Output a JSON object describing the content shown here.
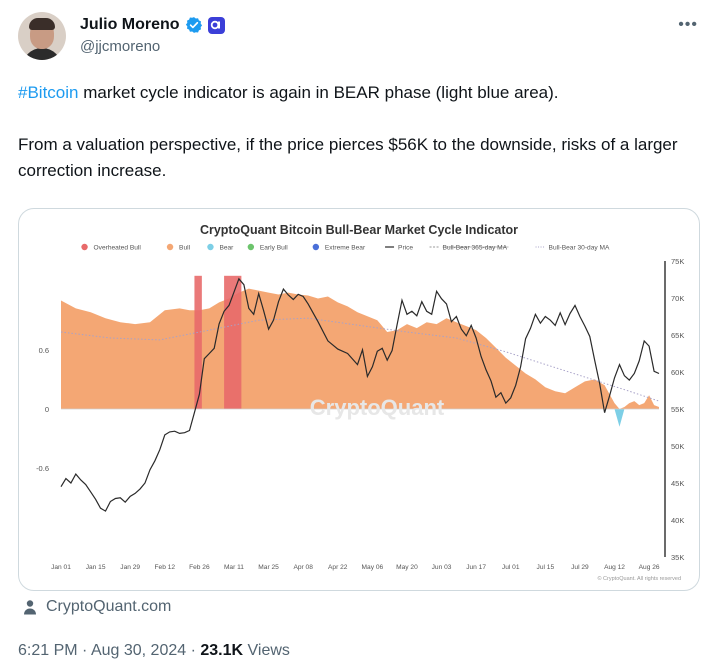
{
  "user": {
    "display_name": "Julio Moreno",
    "handle": "@jjcmoreno"
  },
  "tweet": {
    "hashtag": "#Bitcoin",
    "line1_rest": " market cycle indicator is again in BEAR phase (light blue area).",
    "line2": "From a valuation perspective, if the price pierces $56K to the downside, risks of a larger correction increase."
  },
  "card_source": "CryptoQuant.com",
  "meta": {
    "time": "6:21 PM",
    "sep": " · ",
    "date": "Aug 30, 2024",
    "views_count": "23.1K",
    "views_label": " Views"
  },
  "colors": {
    "bull": "#f4a774",
    "overheated_bull": "#e86a6a",
    "bear": "#7dcfe6",
    "early_bull": "#6cc46c",
    "extreme_bear": "#4a6fd8",
    "hashtag": "#1d9bf0"
  },
  "chart_data": {
    "type": "area",
    "title": "CryptoQuant Bitcoin Bull-Bear Market Cycle Indicator",
    "watermark": "CryptoQuant",
    "copyright": "© CryptoQuant. All rights reserved",
    "legend": [
      {
        "name": "Overheated Bull",
        "kind": "dot",
        "color": "#e86a6a"
      },
      {
        "name": "Bull",
        "kind": "dot",
        "color": "#f4a774"
      },
      {
        "name": "Bear",
        "kind": "dot",
        "color": "#7dcfe6"
      },
      {
        "name": "Early Bull",
        "kind": "dot",
        "color": "#6cc46c"
      },
      {
        "name": "Extreme Bear",
        "kind": "dot",
        "color": "#4a6fd8"
      },
      {
        "name": "Price",
        "kind": "line"
      },
      {
        "name": "Bull-Bear 365-day MA",
        "kind": "strike"
      },
      {
        "name": "Bull-Bear 30-day MA",
        "kind": "dotted"
      }
    ],
    "x_ticks": [
      "Jan 01",
      "Jan 15",
      "Jan 29",
      "Feb 12",
      "Feb 26",
      "Mar 11",
      "Mar 25",
      "Apr 08",
      "Apr 22",
      "May 06",
      "May 20",
      "Jun 03",
      "Jun 17",
      "Jul 01",
      "Jul 15",
      "Jul 29",
      "Aug 12",
      "Aug 26"
    ],
    "y_left_ticks": [
      "0.6",
      "0",
      "-0.6"
    ],
    "y_left_range": [
      -1.5,
      1.5
    ],
    "y_right_ticks": [
      "75K",
      "70K",
      "65K",
      "60K",
      "55K",
      "50K",
      "45K",
      "40K",
      "35K"
    ],
    "y_right_range": [
      35000,
      75000
    ],
    "x_range": [
      0,
      242
    ],
    "bull_bear_indicator": [
      [
        0,
        1.1
      ],
      [
        6,
        1.02
      ],
      [
        12,
        0.98
      ],
      [
        18,
        0.92
      ],
      [
        24,
        0.88
      ],
      [
        30,
        0.86
      ],
      [
        36,
        0.88
      ],
      [
        42,
        1.0
      ],
      [
        48,
        1.02
      ],
      [
        52,
        1.0
      ],
      [
        56,
        1.0
      ],
      [
        60,
        1.02
      ],
      [
        64,
        1.08
      ],
      [
        68,
        1.12
      ],
      [
        72,
        1.18
      ],
      [
        76,
        1.22
      ],
      [
        80,
        1.2
      ],
      [
        84,
        1.18
      ],
      [
        88,
        1.16
      ],
      [
        92,
        1.18
      ],
      [
        96,
        1.16
      ],
      [
        100,
        1.15
      ],
      [
        104,
        1.12
      ],
      [
        108,
        1.14
      ],
      [
        112,
        1.08
      ],
      [
        116,
        1.04
      ],
      [
        120,
        0.98
      ],
      [
        124,
        0.94
      ],
      [
        128,
        0.9
      ],
      [
        132,
        0.78
      ],
      [
        136,
        0.8
      ],
      [
        140,
        0.86
      ],
      [
        144,
        0.82
      ],
      [
        148,
        0.88
      ],
      [
        152,
        0.86
      ],
      [
        156,
        0.92
      ],
      [
        160,
        0.88
      ],
      [
        164,
        0.84
      ],
      [
        168,
        0.8
      ],
      [
        172,
        0.72
      ],
      [
        176,
        0.62
      ],
      [
        180,
        0.52
      ],
      [
        184,
        0.44
      ],
      [
        188,
        0.36
      ],
      [
        192,
        0.3
      ],
      [
        196,
        0.22
      ],
      [
        200,
        0.18
      ],
      [
        204,
        0.16
      ],
      [
        208,
        0.22
      ],
      [
        212,
        0.28
      ],
      [
        216,
        0.3
      ],
      [
        220,
        0.24
      ],
      [
        224,
        0.06
      ],
      [
        226,
        -0.18
      ],
      [
        228,
        0.02
      ],
      [
        230,
        0.06
      ],
      [
        232,
        0.08
      ],
      [
        234,
        0.04
      ],
      [
        236,
        0.06
      ],
      [
        238,
        0.14
      ],
      [
        240,
        0.04
      ],
      [
        242,
        0.02
      ]
    ],
    "price_usd": [
      [
        0,
        44500
      ],
      [
        2,
        45600
      ],
      [
        4,
        45000
      ],
      [
        6,
        46200
      ],
      [
        8,
        45400
      ],
      [
        10,
        44800
      ],
      [
        12,
        43800
      ],
      [
        14,
        42800
      ],
      [
        16,
        41600
      ],
      [
        18,
        41200
      ],
      [
        20,
        42500
      ],
      [
        22,
        42900
      ],
      [
        24,
        43000
      ],
      [
        26,
        42400
      ],
      [
        28,
        43200
      ],
      [
        30,
        43600
      ],
      [
        32,
        44200
      ],
      [
        34,
        45000
      ],
      [
        36,
        46800
      ],
      [
        38,
        48000
      ],
      [
        40,
        49500
      ],
      [
        42,
        51500
      ],
      [
        44,
        51900
      ],
      [
        46,
        52000
      ],
      [
        48,
        51700
      ],
      [
        50,
        51800
      ],
      [
        52,
        52100
      ],
      [
        54,
        54500
      ],
      [
        56,
        57000
      ],
      [
        58,
        61800
      ],
      [
        60,
        62500
      ],
      [
        62,
        63200
      ],
      [
        64,
        66500
      ],
      [
        66,
        68200
      ],
      [
        68,
        69000
      ],
      [
        70,
        70800
      ],
      [
        72,
        72600
      ],
      [
        74,
        71800
      ],
      [
        76,
        68600
      ],
      [
        78,
        67800
      ],
      [
        80,
        70600
      ],
      [
        82,
        68300
      ],
      [
        84,
        65800
      ],
      [
        86,
        67000
      ],
      [
        88,
        69500
      ],
      [
        90,
        71200
      ],
      [
        92,
        70400
      ],
      [
        94,
        69800
      ],
      [
        96,
        70500
      ],
      [
        98,
        70200
      ],
      [
        100,
        69200
      ],
      [
        104,
        66800
      ],
      [
        108,
        64200
      ],
      [
        112,
        63100
      ],
      [
        116,
        62500
      ],
      [
        120,
        61000
      ],
      [
        122,
        63000
      ],
      [
        124,
        59400
      ],
      [
        126,
        60700
      ],
      [
        128,
        62800
      ],
      [
        130,
        63200
      ],
      [
        132,
        61600
      ],
      [
        134,
        62900
      ],
      [
        136,
        66400
      ],
      [
        138,
        69700
      ],
      [
        140,
        67800
      ],
      [
        142,
        68200
      ],
      [
        144,
        67600
      ],
      [
        146,
        69500
      ],
      [
        148,
        68200
      ],
      [
        150,
        67800
      ],
      [
        152,
        70900
      ],
      [
        154,
        69900
      ],
      [
        156,
        69200
      ],
      [
        158,
        66800
      ],
      [
        160,
        67500
      ],
      [
        162,
        65800
      ],
      [
        164,
        64900
      ],
      [
        166,
        66300
      ],
      [
        168,
        64600
      ],
      [
        170,
        62100
      ],
      [
        172,
        60300
      ],
      [
        174,
        58800
      ],
      [
        176,
        56600
      ],
      [
        178,
        57200
      ],
      [
        180,
        55800
      ],
      [
        182,
        56500
      ],
      [
        184,
        58200
      ],
      [
        186,
        60700
      ],
      [
        188,
        64500
      ],
      [
        190,
        65900
      ],
      [
        192,
        67800
      ],
      [
        194,
        66600
      ],
      [
        196,
        67500
      ],
      [
        198,
        67000
      ],
      [
        200,
        66300
      ],
      [
        202,
        68000
      ],
      [
        204,
        66400
      ],
      [
        206,
        67900
      ],
      [
        208,
        69000
      ],
      [
        210,
        67500
      ],
      [
        212,
        66200
      ],
      [
        214,
        64800
      ],
      [
        216,
        61500
      ],
      [
        218,
        58400
      ],
      [
        220,
        54500
      ],
      [
        222,
        56800
      ],
      [
        224,
        59200
      ],
      [
        226,
        61000
      ],
      [
        228,
        59500
      ],
      [
        230,
        58900
      ],
      [
        232,
        59800
      ],
      [
        234,
        61500
      ],
      [
        236,
        64200
      ],
      [
        238,
        63500
      ],
      [
        240,
        60100
      ],
      [
        242,
        59800
      ]
    ],
    "ma_30day": [
      [
        0,
        0.78
      ],
      [
        20,
        0.72
      ],
      [
        40,
        0.7
      ],
      [
        60,
        0.8
      ],
      [
        80,
        0.9
      ],
      [
        100,
        0.92
      ],
      [
        120,
        0.85
      ],
      [
        140,
        0.78
      ],
      [
        160,
        0.72
      ],
      [
        180,
        0.58
      ],
      [
        200,
        0.42
      ],
      [
        215,
        0.3
      ],
      [
        230,
        0.18
      ],
      [
        242,
        0.08
      ]
    ],
    "phase_bands": [
      {
        "phase": "Overheated Bull",
        "x0": 66,
        "x1": 73
      },
      {
        "phase": "Overheated Bull",
        "x0": 54,
        "x1": 57
      }
    ]
  }
}
